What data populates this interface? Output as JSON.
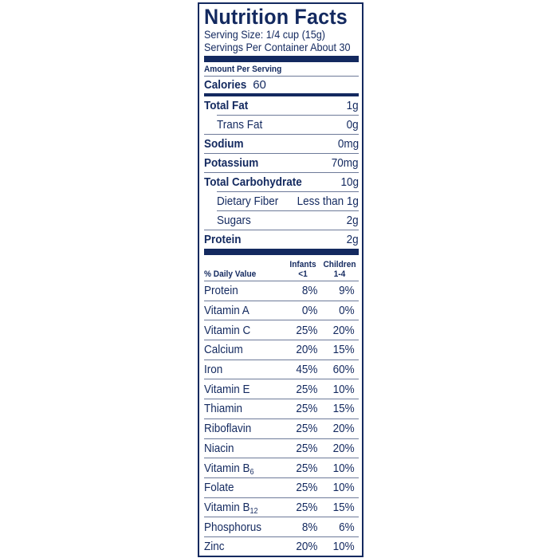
{
  "label": {
    "title": "Nutrition Facts",
    "serving_size": "Serving Size: 1/4 cup (15g)",
    "servings_per_container": "Servings Per Container  About 30",
    "amount_per_serving": "Amount Per Serving",
    "calories": {
      "name": "Calories",
      "value": "60"
    },
    "nutrients": [
      {
        "name": "Total Fat",
        "value": "1g",
        "bold": true,
        "indent": false
      },
      {
        "name": "Trans Fat",
        "value": "0g",
        "bold": false,
        "indent": true
      },
      {
        "name": "Sodium",
        "value": "0mg",
        "bold": true,
        "indent": false
      },
      {
        "name": "Potassium",
        "value": "70mg",
        "bold": true,
        "indent": false
      },
      {
        "name": "Total Carbohydrate",
        "value": "10g",
        "bold": true,
        "indent": false
      },
      {
        "name": "Dietary Fiber",
        "value": "Less than 1g",
        "bold": false,
        "indent": true
      },
      {
        "name": "Sugars",
        "value": "2g",
        "bold": false,
        "indent": true
      },
      {
        "name": "Protein",
        "value": "2g",
        "bold": true,
        "indent": false
      }
    ],
    "daily_value": {
      "header": "% Daily Value",
      "col1": {
        "line1": "Infants",
        "line2": "<1"
      },
      "col2": {
        "line1": "Children",
        "line2": "1-4"
      },
      "rows": [
        {
          "name": "Protein",
          "infants": "8%",
          "children": "9%"
        },
        {
          "name": "Vitamin A",
          "infants": "0%",
          "children": "0%"
        },
        {
          "name": "Vitamin C",
          "infants": "25%",
          "children": "20%"
        },
        {
          "name": "Calcium",
          "infants": "20%",
          "children": "15%"
        },
        {
          "name": "Iron",
          "infants": "45%",
          "children": "60%"
        },
        {
          "name": "Vitamin E",
          "infants": "25%",
          "children": "10%"
        },
        {
          "name": "Thiamin",
          "infants": "25%",
          "children": "15%"
        },
        {
          "name": "Riboflavin",
          "infants": "25%",
          "children": "20%"
        },
        {
          "name": "Niacin",
          "infants": "25%",
          "children": "20%"
        },
        {
          "name": "Vitamin B",
          "sub": "6",
          "infants": "25%",
          "children": "10%"
        },
        {
          "name": "Folate",
          "infants": "25%",
          "children": "10%"
        },
        {
          "name": "Vitamin B",
          "sub": "12",
          "infants": "25%",
          "children": "15%"
        },
        {
          "name": "Phosphorus",
          "infants": "8%",
          "children": "6%"
        },
        {
          "name": "Zinc",
          "infants": "20%",
          "children": "10%"
        }
      ]
    }
  },
  "colors": {
    "ink": "#13295f",
    "rule": "#6d7a99",
    "background": "#ffffff"
  }
}
